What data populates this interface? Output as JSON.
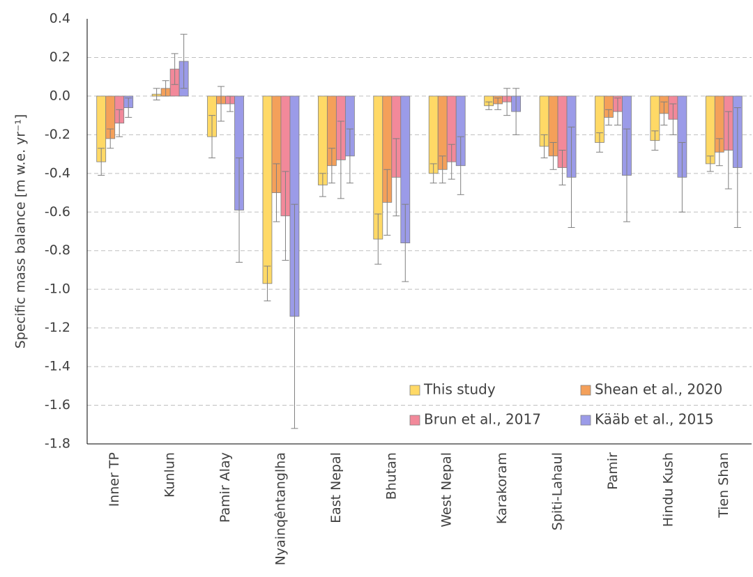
{
  "chart_data": {
    "type": "bar",
    "y_label": "Specific mass balance [m w.e. yr⁻¹]",
    "categories": [
      "Inner TP",
      "Kunlun",
      "Pamir Alay",
      "Nyainqêntanglha",
      "East Nepal",
      "Bhutan",
      "West Nepal",
      "Karakoram",
      "Spiti-Lahaul",
      "Pamir",
      "Hindu Kush",
      "Tien Shan"
    ],
    "series": [
      {
        "name": "This study",
        "color": "#ffd966",
        "values": [
          -0.34,
          0.01,
          -0.21,
          -0.97,
          -0.46,
          -0.74,
          -0.4,
          -0.05,
          -0.26,
          -0.24,
          -0.23,
          -0.35
        ],
        "errors": [
          0.07,
          0.03,
          0.11,
          0.09,
          0.06,
          0.13,
          0.05,
          0.02,
          0.06,
          0.05,
          0.05,
          0.04
        ]
      },
      {
        "name": "Shean et al., 2020",
        "color": "#f4a05a",
        "values": [
          -0.22,
          0.04,
          -0.04,
          -0.5,
          -0.36,
          -0.55,
          -0.38,
          -0.04,
          -0.31,
          -0.11,
          -0.09,
          -0.29
        ],
        "errors": [
          0.05,
          0.04,
          0.09,
          0.15,
          0.09,
          0.17,
          0.07,
          0.03,
          0.07,
          0.04,
          0.06,
          0.07
        ]
      },
      {
        "name": "Brun et al., 2017",
        "color": "#f2899a",
        "values": [
          -0.14,
          0.14,
          -0.04,
          -0.62,
          -0.33,
          -0.42,
          -0.34,
          -0.03,
          -0.37,
          -0.08,
          -0.12,
          -0.28
        ],
        "errors": [
          0.07,
          0.08,
          0.04,
          0.23,
          0.2,
          0.2,
          0.09,
          0.07,
          0.09,
          0.07,
          0.08,
          0.2
        ]
      },
      {
        "name": "Kääb et al., 2015",
        "color": "#9b9be8",
        "values": [
          -0.06,
          0.18,
          -0.59,
          -1.14,
          -0.31,
          -0.76,
          -0.36,
          -0.08,
          -0.42,
          -0.41,
          -0.42,
          -0.37
        ],
        "errors": [
          0.05,
          0.14,
          0.27,
          0.58,
          0.14,
          0.2,
          0.15,
          0.12,
          0.26,
          0.24,
          0.18,
          0.31
        ]
      }
    ],
    "ylim": [
      -1.8,
      0.4
    ],
    "yticks": [
      0.4,
      0.2,
      {
        "value": 0,
        "label": "0.0"
      },
      -0.2,
      -0.4,
      -0.6,
      -0.8,
      {
        "value": -1,
        "label": "-1.0"
      },
      -1.2,
      -1.4,
      -1.6,
      -1.8
    ],
    "grid": true,
    "legend": "lower right"
  }
}
